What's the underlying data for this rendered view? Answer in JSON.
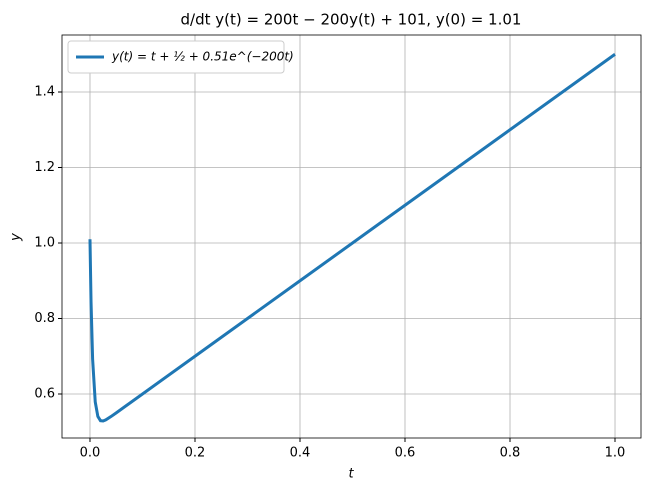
{
  "chart_data": {
    "type": "line",
    "title": "d/dt y(t) = 200t − 200y(t) + 101, y(0) = 1.01",
    "xlabel": "t",
    "ylabel": "y",
    "x": [
      0,
      0.002,
      0.005,
      0.01,
      0.015,
      0.02,
      0.025,
      0.03,
      0.04,
      0.05,
      0.1,
      0.2,
      0.3,
      0.4,
      0.5,
      0.6,
      0.7,
      0.8,
      0.9,
      1.0
    ],
    "series": [
      {
        "name": "y(t) = t + ½ + 0.51e^(−200t)",
        "color": "#1f77b4",
        "values": [
          1.01,
          0.8439,
          0.6926,
          0.579,
          0.5404,
          0.5293,
          0.5284,
          0.5313,
          0.5402,
          0.55,
          0.6,
          0.7,
          0.8,
          0.9,
          1.0,
          1.1,
          1.2,
          1.3,
          1.4,
          1.5
        ]
      }
    ],
    "xlim": [
      -0.0533,
      1.0495
    ],
    "ylim": [
      0.4834,
      1.551
    ],
    "xticks": [
      {
        "value": 0,
        "label": "0.0"
      },
      0.2,
      0.4,
      0.6,
      0.8,
      {
        "value": 1,
        "label": "1.0"
      }
    ],
    "yticks": [
      0.6,
      0.8,
      {
        "value": 1,
        "label": "1.0"
      },
      1.2,
      1.4
    ],
    "grid": true,
    "legend": "upper left"
  }
}
